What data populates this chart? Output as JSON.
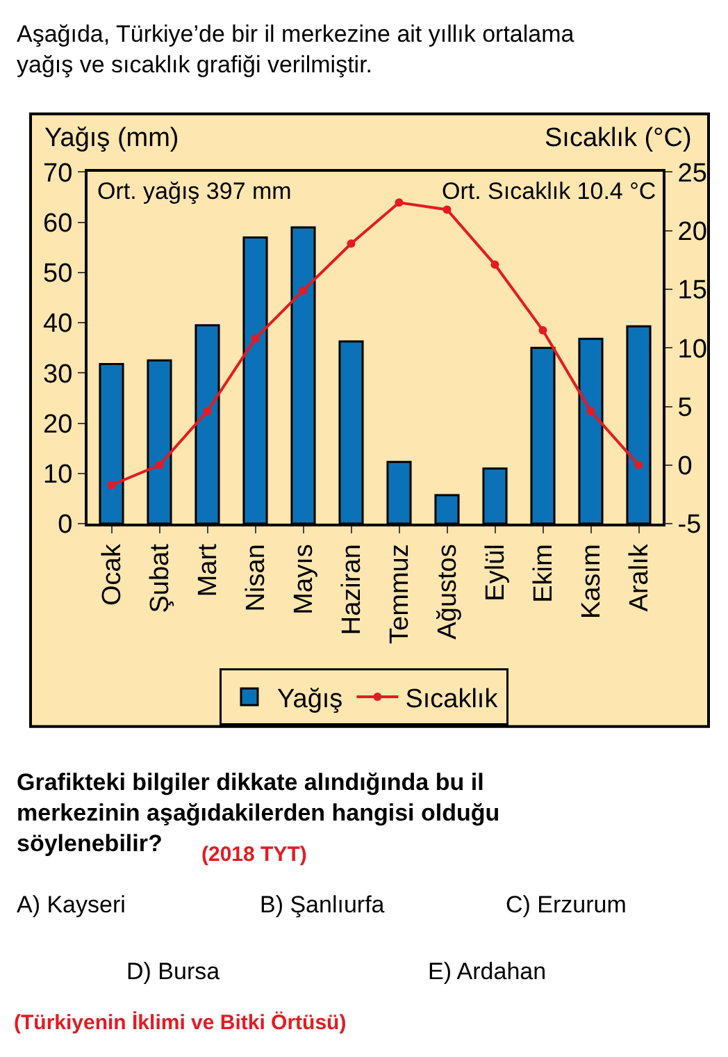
{
  "chart_data": {
    "type": "bar",
    "title": "Aşağıda, Türkiye’de bir il merkezine ait yıllık ortalama yağış ve sıcaklık grafiği verilmiştir.",
    "ylabel": "Yağış (mm)",
    "y2label": "Sıcaklık (°C)",
    "categories": [
      "Ocak",
      "Şubat",
      "Mart",
      "Nisan",
      "Mayıs",
      "Haziran",
      "Temmuz",
      "Ağustos",
      "Eylül",
      "Ekim",
      "Kasım",
      "Aralık"
    ],
    "series": [
      {
        "name": "Yağış",
        "color": "#0b72b8",
        "values": [
          31.8,
          32.5,
          39.5,
          57,
          59,
          36.3,
          12.3,
          5.7,
          11,
          35,
          36.8,
          39.3
        ]
      },
      {
        "name": "Sıcaklık",
        "type": "line",
        "axis": "y2",
        "color": "#e31b23",
        "marker": "circle",
        "values": [
          -1.7,
          0,
          4.6,
          10.8,
          14.9,
          18.9,
          22.4,
          21.8,
          17.1,
          11.5,
          4.6,
          0
        ]
      }
    ],
    "ylim": [
      0,
      70
    ],
    "yticks": [
      0,
      10,
      20,
      30,
      40,
      50,
      60,
      70
    ],
    "y2lim": [
      -5,
      25
    ],
    "y2ticks": [
      -5,
      0,
      5,
      10,
      15,
      20,
      25
    ],
    "grid": false,
    "legend": "bottom",
    "annotations": [
      "Ort. yağış 397 mm",
      "Ort. Sıcaklık 10.4 °C",
      "Grafikteki bilgiler dikkate alındığında bu il merkezinin aşağıdakilerden hangisi olduğu söylenebilir?",
      "(2018 TYT)",
      "A) Kayseri",
      "B) Şanlıurfa",
      "C) Erzurum",
      "D) Bursa",
      "E) Ardahan",
      "(Türkiyenin İklimi ve Bitki Örtüsü)"
    ]
  }
}
